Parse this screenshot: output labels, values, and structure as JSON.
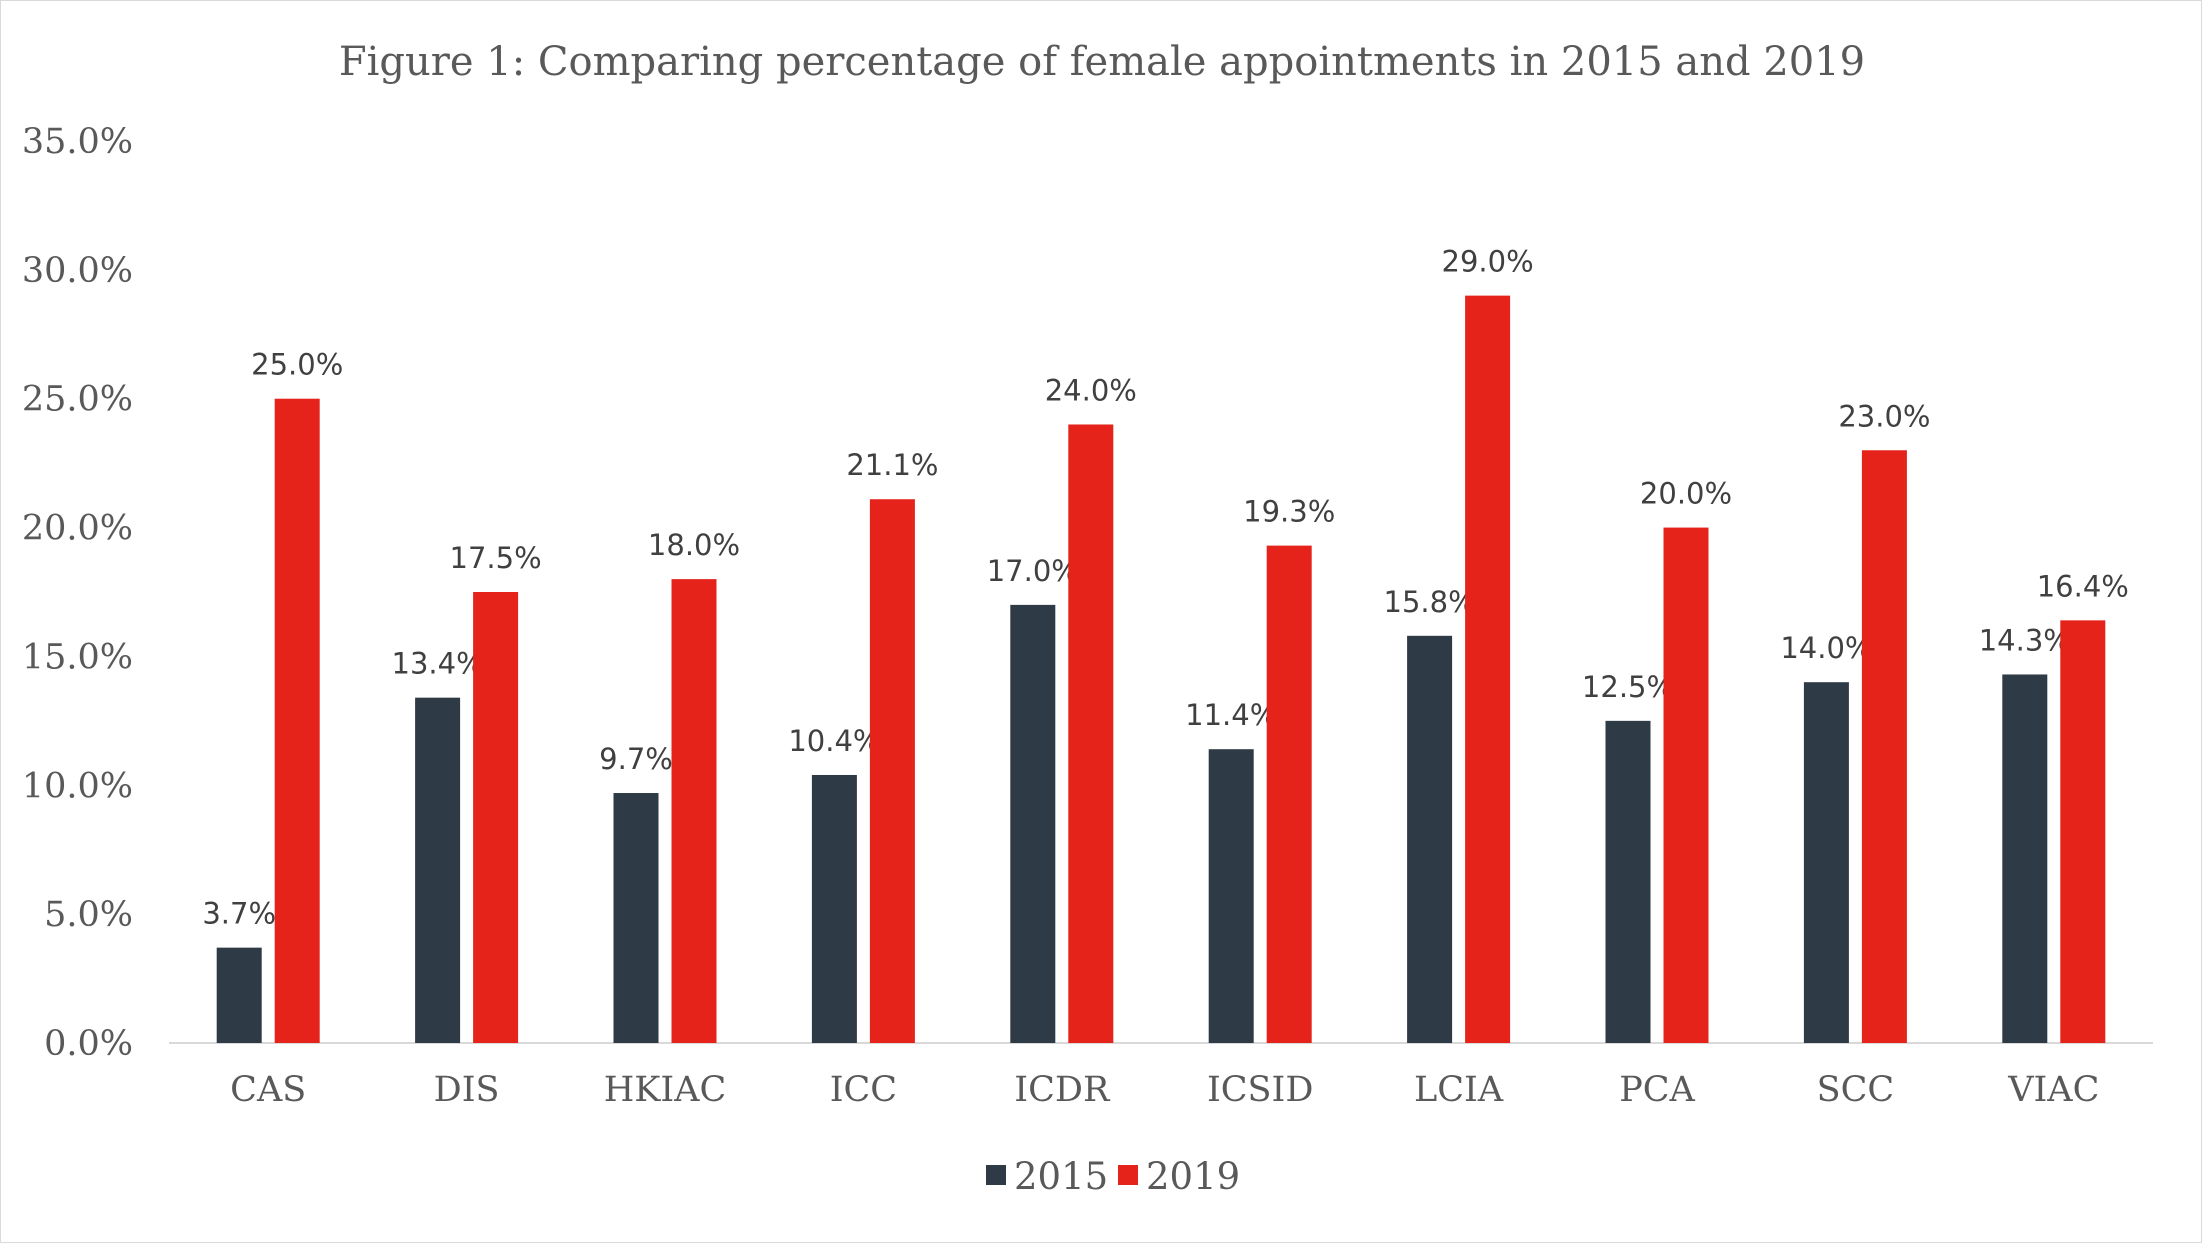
{
  "chart_data": {
    "type": "bar",
    "title": "Figure 1: Comparing percentage of female appointments in 2015 and 2019",
    "xlabel": "",
    "ylabel": "",
    "categories": [
      "CAS",
      "DIS",
      "HKIAC",
      "ICC",
      "ICDR",
      "ICSID",
      "LCIA",
      "PCA",
      "SCC",
      "VIAC"
    ],
    "series": [
      {
        "name": "2015",
        "color": "#2e3a45",
        "values": [
          3.7,
          13.4,
          9.7,
          10.4,
          17.0,
          11.4,
          15.8,
          12.5,
          14.0,
          14.3
        ],
        "labels": [
          "3.7%",
          "13.4%",
          "9.7%",
          "10.4%",
          "17.0%",
          "11.4%",
          "15.8%",
          "12.5%",
          "14.0%",
          "14.3%"
        ]
      },
      {
        "name": "2019",
        "color": "#e5231b",
        "values": [
          25.0,
          17.5,
          18.0,
          21.1,
          24.0,
          19.3,
          29.0,
          20.0,
          23.0,
          16.4
        ],
        "labels": [
          "25.0%",
          "17.5%",
          "18.0%",
          "21.1%",
          "24.0%",
          "19.3%",
          "29.0%",
          "20.0%",
          "23.0%",
          "16.4%"
        ]
      }
    ],
    "ylim": [
      0,
      35
    ],
    "yticks": [
      "0.0%",
      "5.0%",
      "10.0%",
      "15.0%",
      "20.0%",
      "25.0%",
      "30.0%",
      "35.0%"
    ],
    "grid": false,
    "legend": "bottom-center"
  }
}
